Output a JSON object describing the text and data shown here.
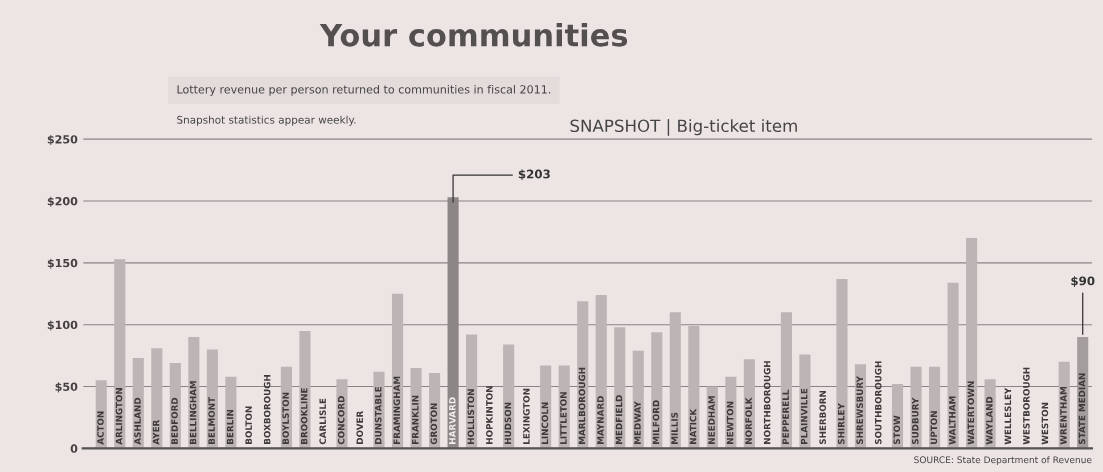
{
  "chart_data": {
    "type": "bar",
    "title": "Your communities",
    "subtitle": "SNAPSHOT | Big-ticket item",
    "categories": [
      "ACTON",
      "ARLINGTON",
      "ASHLAND",
      "AYER",
      "BEDFORD",
      "BELLINGHAM",
      "BELMONT",
      "BERLIN",
      "BOLTON",
      "BOXBOROUGH",
      "BOYLSTON",
      "BROOKLINE",
      "CARLISLE",
      "CONCORD",
      "DOVER",
      "DUNSTABLE",
      "FRAMINGHAM",
      "FRANKLIN",
      "GROTON",
      "HARVARD",
      "HOLLISTON",
      "HOPKINTON",
      "HUDSON",
      "LEXINGTON",
      "LINCOLN",
      "LITTLETON",
      "MARLBOROUGH",
      "MAYNARD",
      "MEDFIELD",
      "MEDWAY",
      "MILFORD",
      "MILLIS",
      "NATICK",
      "NEEDHAM",
      "NEWTON",
      "NORFOLK",
      "NORTHBOROUGH",
      "PEPPERELL",
      "PLAINVILLE",
      "SHERBORN",
      "SHIRLEY",
      "SHREWSBURY",
      "SOUTHBOROUGH",
      "STOW",
      "SUDBURY",
      "UPTON",
      "WALTHAM",
      "WATERTOWN",
      "WAYLAND",
      "WELLESLEY",
      "WESTBOROUGH",
      "WESTON",
      "WRENTHAM",
      "STATE MEDIAN"
    ],
    "values": [
      55,
      153,
      73,
      81,
      69,
      90,
      80,
      58,
      null,
      null,
      66,
      95,
      null,
      56,
      null,
      62,
      125,
      65,
      61,
      203,
      92,
      null,
      84,
      null,
      67,
      67,
      119,
      124,
      98,
      79,
      94,
      110,
      99,
      50,
      58,
      72,
      null,
      110,
      76,
      null,
      137,
      68,
      null,
      52,
      66,
      66,
      134,
      170,
      56,
      null,
      null,
      null,
      70,
      90
    ],
    "colors": [
      "#bdb5b5",
      "#bdb5b5",
      "#bdb5b5",
      "#bdb5b5",
      "#bdb5b5",
      "#bdb5b5",
      "#bdb5b5",
      "#bdb5b5",
      "#bdb5b5",
      "#bdb5b5",
      "#bdb5b5",
      "#bdb5b5",
      "#bdb5b5",
      "#bdb5b5",
      "#bdb5b5",
      "#bdb5b5",
      "#bdb5b5",
      "#bdb5b5",
      "#bdb5b5",
      "#8c8686",
      "#bdb5b5",
      "#bdb5b5",
      "#bdb5b5",
      "#bdb5b5",
      "#bdb5b5",
      "#bdb5b5",
      "#bdb5b5",
      "#bdb5b5",
      "#bdb5b5",
      "#bdb5b5",
      "#bdb5b5",
      "#bdb5b5",
      "#bdb5b5",
      "#bdb5b5",
      "#bdb5b5",
      "#bdb5b5",
      "#bdb5b5",
      "#bdb5b5",
      "#bdb5b5",
      "#bdb5b5",
      "#bdb5b5",
      "#bdb5b5",
      "#bdb5b5",
      "#bdb5b5",
      "#bdb5b5",
      "#bdb5b5",
      "#bdb5b5",
      "#bdb5b5",
      "#bdb5b5",
      "#bdb5b5",
      "#bdb5b5",
      "#bdb5b5",
      "#bdb5b5",
      "#a39d9d"
    ],
    "value_labels": [
      null,
      null,
      null,
      null,
      null,
      null,
      null,
      null,
      null,
      null,
      null,
      null,
      null,
      null,
      null,
      null,
      null,
      null,
      null,
      "$203",
      null,
      null,
      null,
      null,
      null,
      null,
      null,
      null,
      null,
      null,
      null,
      null,
      null,
      null,
      null,
      null,
      null,
      null,
      null,
      null,
      null,
      null,
      null,
      null,
      null,
      null,
      null,
      null,
      null,
      null,
      null,
      null,
      null,
      "$90"
    ],
    "ylim": [
      0,
      290
    ],
    "yticks": [
      0,
      {
        "value": 50,
        "label": "$50"
      },
      {
        "value": 100,
        "label": "$100"
      },
      {
        "value": 150,
        "label": "$150"
      },
      {
        "value": 200,
        "label": "$200"
      },
      {
        "value": 250,
        "label": "$250"
      }
    ],
    "grid": "y",
    "annotations": [
      "Lottery revenue per person returned to communities in fiscal 2011.",
      "Snapshot statistics appear weekly.",
      "SOURCE: State Department of Revenue"
    ]
  }
}
